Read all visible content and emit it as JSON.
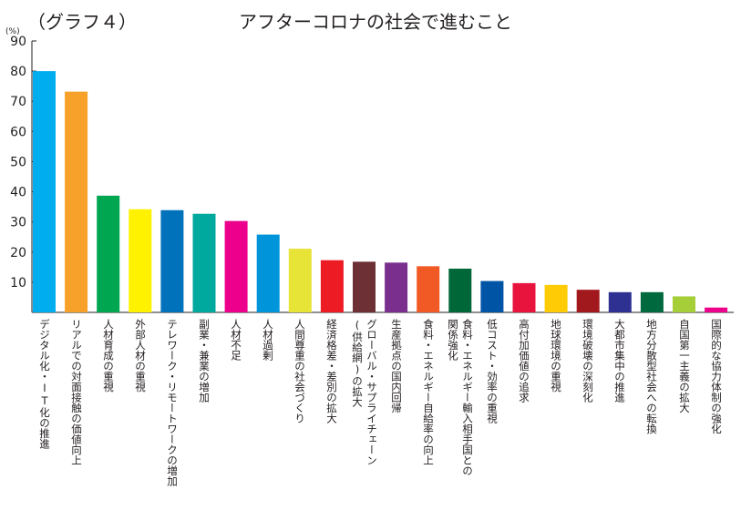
{
  "header": {
    "graph_label": "（グラフ４）",
    "title": "アフターコロナの社会で進むこと",
    "unit": "(%)"
  },
  "chart_data": {
    "type": "bar",
    "title": "アフターコロナの社会で進むこと",
    "ylabel": "(%)",
    "ylim": [
      0,
      90
    ],
    "yticks": [
      0,
      10,
      20,
      30,
      40,
      50,
      60,
      70,
      80,
      90
    ],
    "grid": false,
    "categories": [
      "デジタル化・IT化の推進",
      "リアルでの対面接触の価値向上",
      "人材育成の重視",
      "外部人材の重視",
      "テレワーク・リモートワークの増加",
      "副業・兼業の増加",
      "人材不足",
      "人材過剰",
      "人間尊重の社会づくり",
      "経済格差・差別の拡大",
      "グローバル・サプライチェーン\n(供給網)の拡大",
      "生産拠点の国内回帰",
      "食料・エネルギー自給率の向上",
      "食料・エネルギー輸入相手国との\n関係強化",
      "低コスト・効率の重視",
      "高付加価値の追求",
      "地球環境の重視",
      "環境破壊の深刻化",
      "大都市集中の推進",
      "地方分散型社会への転換",
      "自国第一主義の拡大",
      "国際的な協力体制の強化"
    ],
    "values": [
      80.0,
      73.2,
      38.7,
      34.2,
      33.9,
      32.7,
      30.3,
      25.8,
      21.1,
      17.3,
      16.8,
      16.5,
      15.3,
      14.5,
      10.4,
      9.7,
      9.1,
      7.5,
      6.7,
      6.7,
      5.3,
      1.6
    ],
    "colors": [
      "#00aeef",
      "#f7a12a",
      "#00a650",
      "#fff200",
      "#0072bc",
      "#00a99d",
      "#ec008c",
      "#0095da",
      "#e8e337",
      "#ed1c24",
      "#6d3035",
      "#7a2e8e",
      "#f15a24",
      "#006838",
      "#0054a6",
      "#e8143e",
      "#ffcb05",
      "#a1191d",
      "#2e3192",
      "#00693e",
      "#a6ce39",
      "#ec008c"
    ]
  }
}
